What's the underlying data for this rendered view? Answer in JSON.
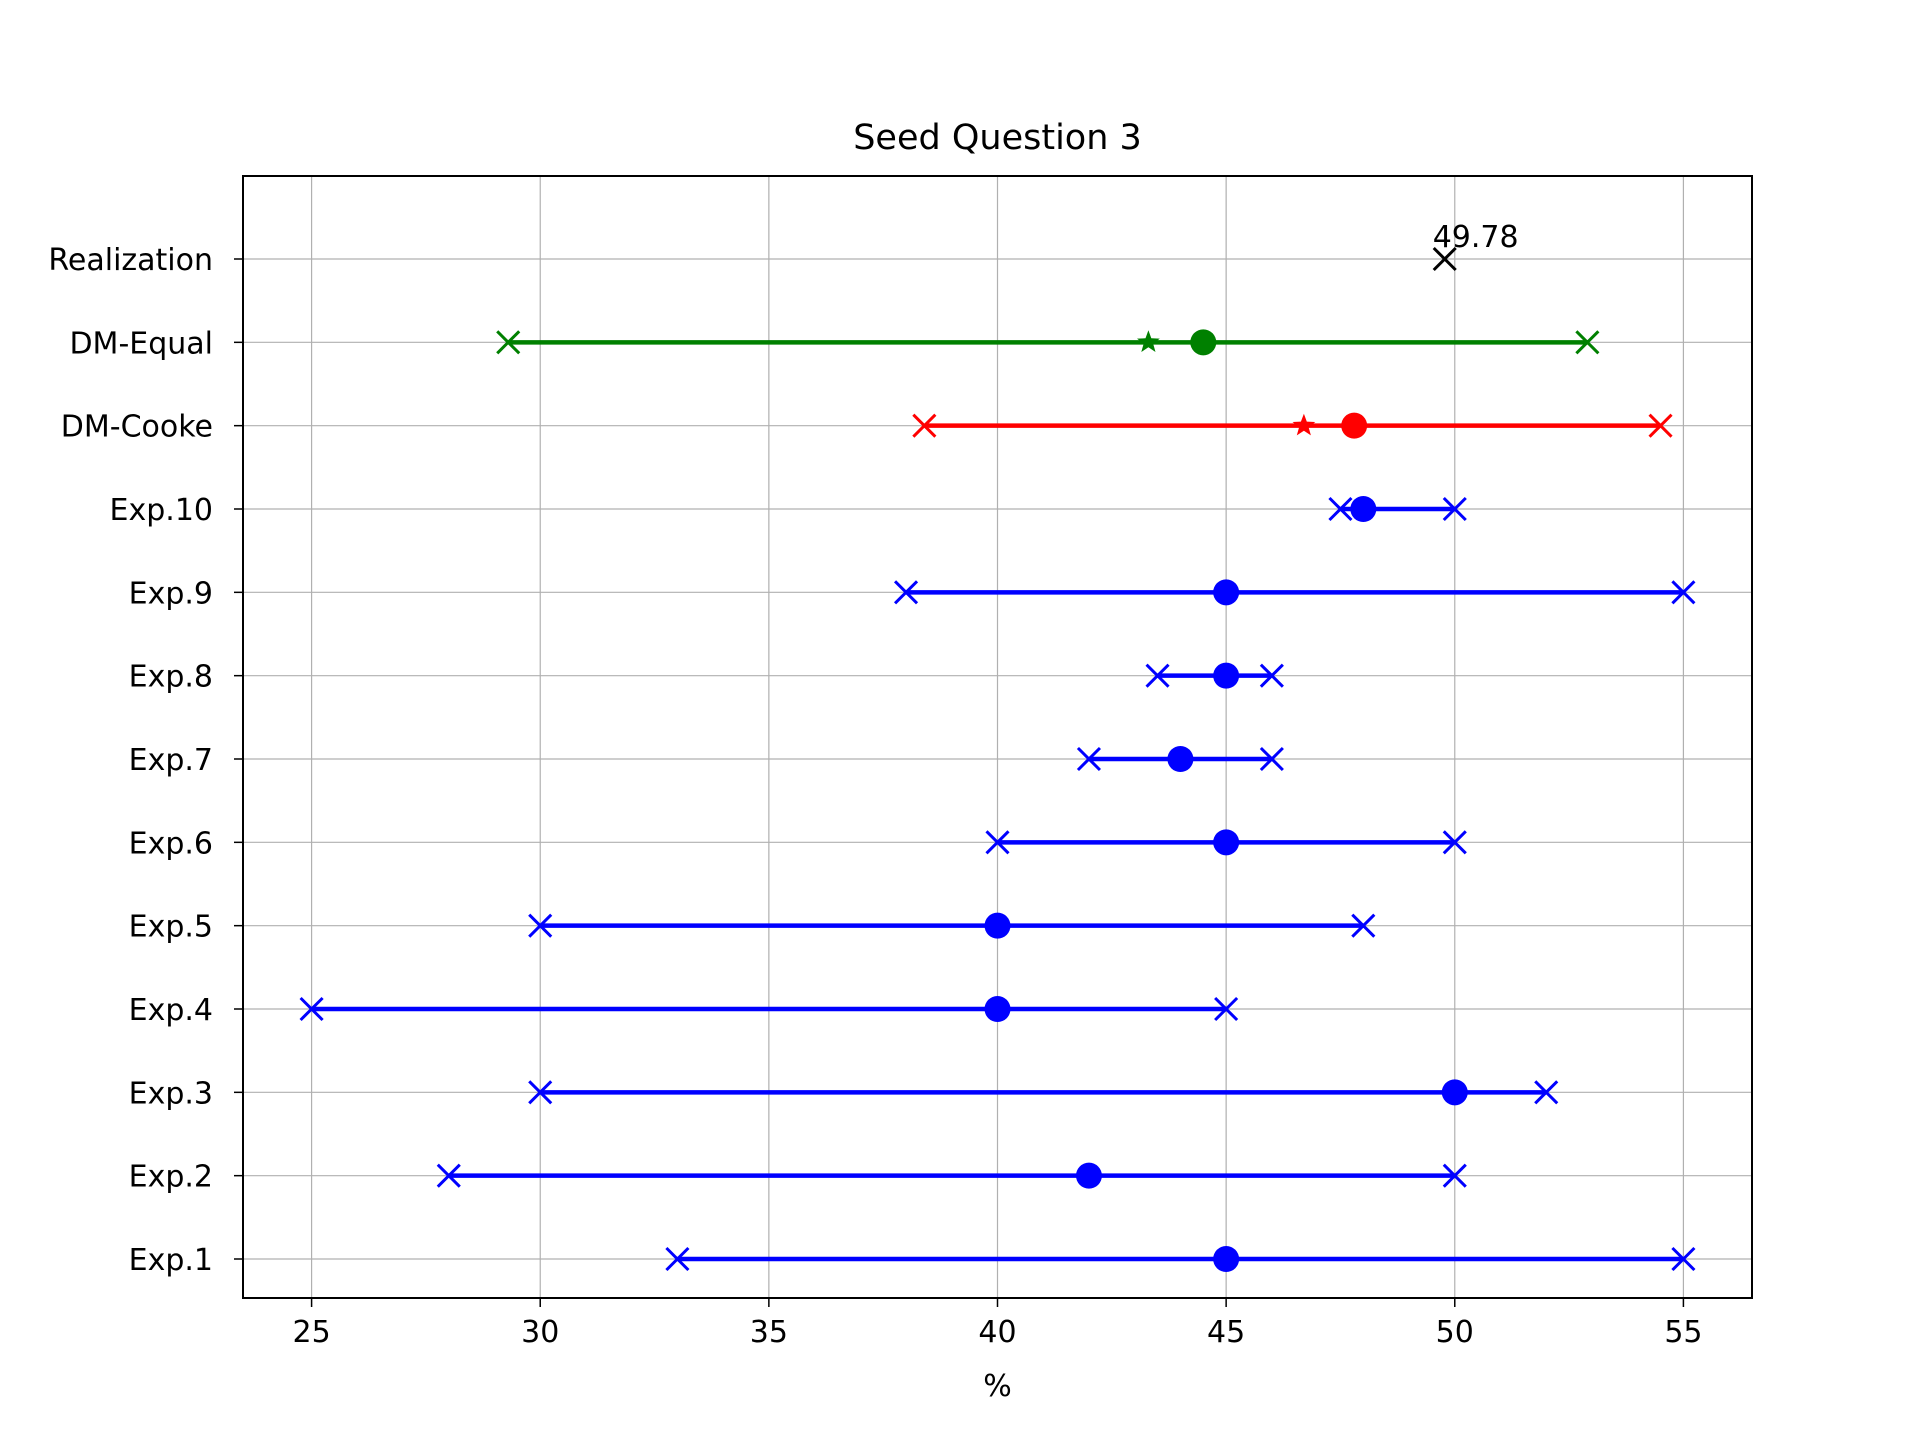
{
  "chart_data": {
    "type": "interval",
    "title": "Seed Question 3",
    "xlabel": "%",
    "ylabel": "",
    "xlim": [
      23.5,
      56.5
    ],
    "xticks": [
      25,
      30,
      35,
      40,
      45,
      50,
      55
    ],
    "grid": true,
    "rows": [
      {
        "label": "Exp.1",
        "low": 33,
        "mid": 45,
        "high": 55,
        "star": null,
        "color": "#0000ff"
      },
      {
        "label": "Exp.2",
        "low": 28,
        "mid": 42,
        "high": 50,
        "star": null,
        "color": "#0000ff"
      },
      {
        "label": "Exp.3",
        "low": 30,
        "mid": 50,
        "high": 52,
        "star": null,
        "color": "#0000ff"
      },
      {
        "label": "Exp.4",
        "low": 25,
        "mid": 40,
        "high": 45,
        "star": null,
        "color": "#0000ff"
      },
      {
        "label": "Exp.5",
        "low": 30,
        "mid": 40,
        "high": 48,
        "star": null,
        "color": "#0000ff"
      },
      {
        "label": "Exp.6",
        "low": 40,
        "mid": 45,
        "high": 50,
        "star": null,
        "color": "#0000ff"
      },
      {
        "label": "Exp.7",
        "low": 42,
        "mid": 44,
        "high": 46,
        "star": null,
        "color": "#0000ff"
      },
      {
        "label": "Exp.8",
        "low": 43.5,
        "mid": 45,
        "high": 46,
        "star": null,
        "color": "#0000ff"
      },
      {
        "label": "Exp.9",
        "low": 38,
        "mid": 45,
        "high": 55,
        "star": null,
        "color": "#0000ff"
      },
      {
        "label": "Exp.10",
        "low": 47.5,
        "mid": 48,
        "high": 50,
        "star": null,
        "color": "#0000ff"
      },
      {
        "label": "DM-Cooke",
        "low": 38.4,
        "mid": 47.8,
        "high": 54.5,
        "star": 46.7,
        "color": "#ff0000"
      },
      {
        "label": "DM-Equal",
        "low": 29.3,
        "mid": 44.5,
        "high": 52.9,
        "star": 43.3,
        "color": "#008000"
      }
    ],
    "realization": {
      "label": "Realization",
      "value": 49.78,
      "value_text": "49.78",
      "color": "#000000"
    }
  }
}
